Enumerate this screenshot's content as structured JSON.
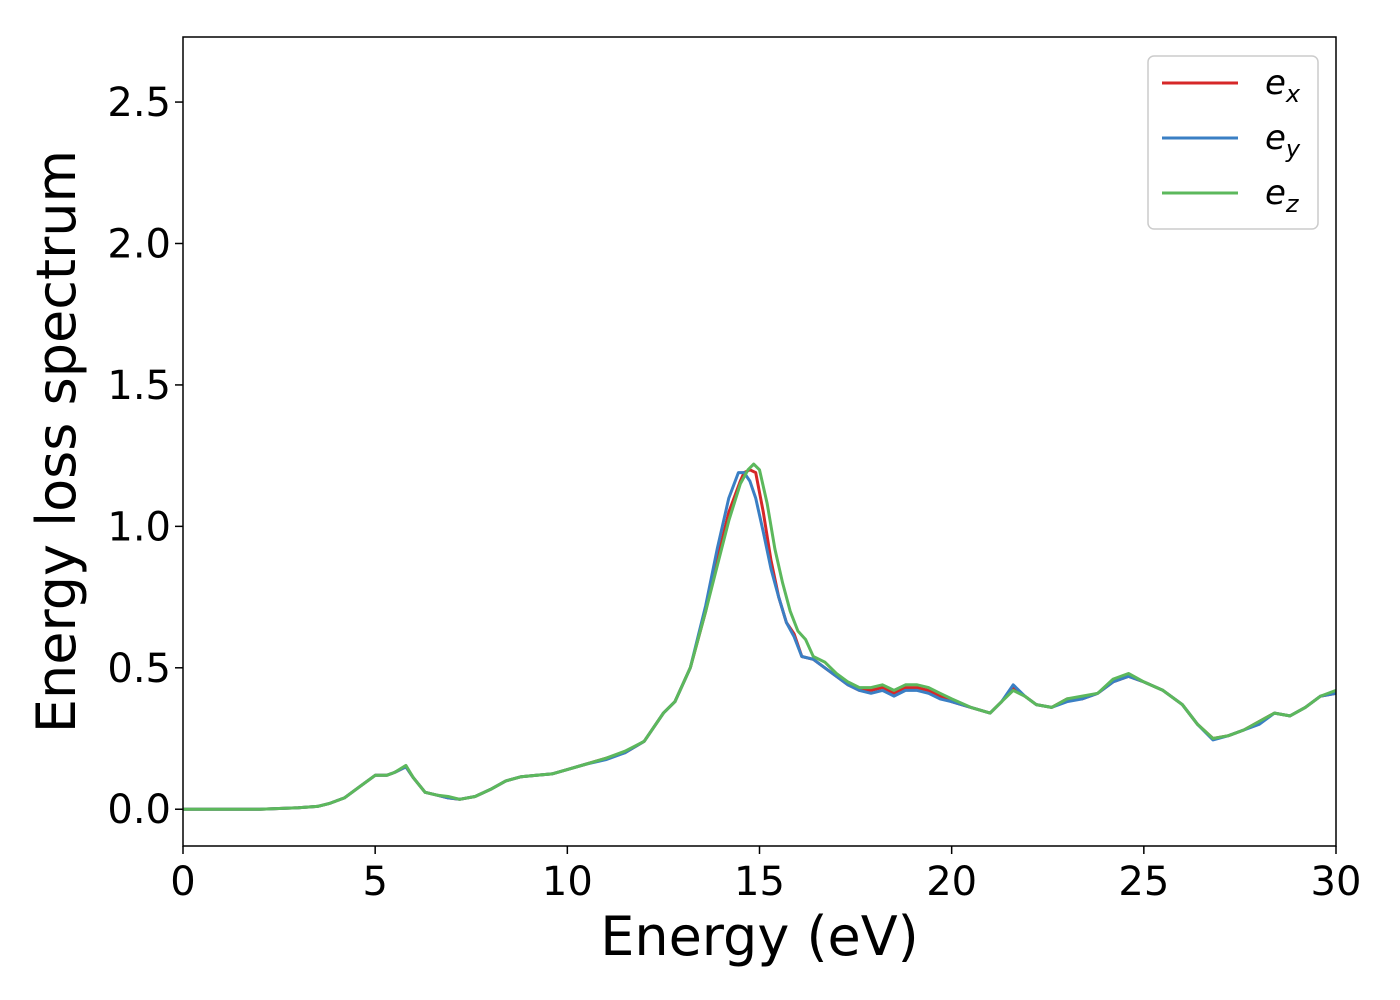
{
  "chart_data": {
    "type": "line",
    "xlabel": "Energy (eV)",
    "ylabel": "Energy loss spectrum",
    "xlim": [
      0,
      30
    ],
    "ylim": [
      -0.13,
      2.73
    ],
    "xticks": [
      0,
      5,
      10,
      15,
      20,
      25,
      30
    ],
    "xtick_labels": [
      "0",
      "5",
      "10",
      "15",
      "20",
      "25",
      "30"
    ],
    "yticks": [
      0.0,
      0.5,
      1.0,
      1.5,
      2.0,
      2.5
    ],
    "ytick_labels": [
      "0.0",
      "0.5",
      "1.0",
      "1.5",
      "2.0",
      "2.5"
    ],
    "grid": false,
    "legend_position": "top-right",
    "series": [
      {
        "name": "e_x",
        "legend_base": "e",
        "legend_sub": "x",
        "color": "#d62728",
        "x": [
          0,
          1,
          2,
          3,
          3.5,
          3.8,
          4.2,
          4.6,
          5.0,
          5.3,
          5.5,
          5.8,
          6.0,
          6.3,
          6.6,
          6.9,
          7.2,
          7.6,
          8.0,
          8.4,
          8.8,
          9.2,
          9.6,
          10.0,
          10.5,
          11.0,
          11.5,
          12.0,
          12.5,
          12.8,
          13.2,
          13.6,
          13.9,
          14.2,
          14.5,
          14.6,
          14.75,
          14.9,
          15.1,
          15.3,
          15.5,
          15.7,
          15.9,
          16.1,
          16.4,
          16.7,
          17.0,
          17.3,
          17.6,
          17.9,
          18.2,
          18.5,
          18.8,
          19.1,
          19.4,
          19.7,
          20.0,
          20.5,
          21.0,
          21.3,
          21.6,
          21.9,
          22.2,
          22.6,
          23.0,
          23.4,
          23.8,
          24.2,
          24.6,
          25.0,
          25.5,
          26.0,
          26.4,
          26.8,
          27.2,
          27.6,
          28.0,
          28.4,
          28.8,
          29.2,
          29.6,
          30.0
        ],
        "y": [
          0.0,
          0.0,
          0.0,
          0.005,
          0.01,
          0.02,
          0.04,
          0.08,
          0.12,
          0.12,
          0.13,
          0.15,
          0.11,
          0.06,
          0.05,
          0.04,
          0.035,
          0.045,
          0.07,
          0.1,
          0.115,
          0.12,
          0.125,
          0.14,
          0.16,
          0.18,
          0.2,
          0.24,
          0.34,
          0.38,
          0.5,
          0.7,
          0.88,
          1.05,
          1.16,
          1.19,
          1.2,
          1.19,
          1.05,
          0.88,
          0.75,
          0.66,
          0.62,
          0.54,
          0.53,
          0.5,
          0.47,
          0.44,
          0.42,
          0.42,
          0.43,
          0.41,
          0.43,
          0.43,
          0.42,
          0.4,
          0.38,
          0.36,
          0.34,
          0.38,
          0.43,
          0.4,
          0.37,
          0.36,
          0.39,
          0.39,
          0.41,
          0.45,
          0.47,
          0.45,
          0.42,
          0.37,
          0.3,
          0.25,
          0.26,
          0.28,
          0.31,
          0.34,
          0.33,
          0.36,
          0.4,
          0.41
        ]
      },
      {
        "name": "e_y",
        "legend_base": "e",
        "legend_sub": "y",
        "color": "#3a7fc4",
        "x": [
          0,
          1,
          2,
          3,
          3.5,
          3.8,
          4.2,
          4.6,
          5.0,
          5.3,
          5.5,
          5.8,
          6.0,
          6.3,
          6.6,
          6.9,
          7.2,
          7.6,
          8.0,
          8.4,
          8.8,
          9.2,
          9.6,
          10.0,
          10.5,
          11.0,
          11.5,
          12.0,
          12.5,
          12.8,
          13.2,
          13.6,
          13.9,
          14.2,
          14.45,
          14.6,
          14.75,
          14.9,
          15.1,
          15.3,
          15.5,
          15.7,
          15.9,
          16.1,
          16.4,
          16.7,
          17.0,
          17.3,
          17.6,
          17.9,
          18.2,
          18.5,
          18.8,
          19.1,
          19.4,
          19.7,
          20.0,
          20.5,
          21.0,
          21.3,
          21.6,
          21.9,
          22.2,
          22.6,
          23.0,
          23.4,
          23.8,
          24.2,
          24.6,
          25.0,
          25.5,
          26.0,
          26.4,
          26.8,
          27.2,
          27.6,
          28.0,
          28.4,
          28.8,
          29.2,
          29.6,
          30.0
        ],
        "y": [
          0.0,
          0.0,
          0.0,
          0.005,
          0.01,
          0.02,
          0.04,
          0.08,
          0.12,
          0.12,
          0.13,
          0.15,
          0.11,
          0.06,
          0.05,
          0.04,
          0.035,
          0.045,
          0.07,
          0.1,
          0.115,
          0.12,
          0.125,
          0.14,
          0.16,
          0.175,
          0.2,
          0.24,
          0.34,
          0.38,
          0.5,
          0.72,
          0.92,
          1.1,
          1.19,
          1.19,
          1.16,
          1.1,
          0.98,
          0.85,
          0.75,
          0.66,
          0.61,
          0.54,
          0.53,
          0.5,
          0.47,
          0.44,
          0.42,
          0.41,
          0.42,
          0.4,
          0.42,
          0.42,
          0.41,
          0.39,
          0.38,
          0.36,
          0.34,
          0.38,
          0.44,
          0.4,
          0.37,
          0.36,
          0.38,
          0.39,
          0.41,
          0.45,
          0.47,
          0.45,
          0.42,
          0.37,
          0.3,
          0.245,
          0.26,
          0.28,
          0.3,
          0.34,
          0.33,
          0.36,
          0.4,
          0.41
        ]
      },
      {
        "name": "e_z",
        "legend_base": "e",
        "legend_sub": "z",
        "color": "#5cb85c",
        "x": [
          0,
          1,
          2,
          3,
          3.5,
          3.8,
          4.2,
          4.6,
          5.0,
          5.3,
          5.5,
          5.8,
          6.0,
          6.3,
          6.6,
          6.9,
          7.2,
          7.6,
          8.0,
          8.4,
          8.8,
          9.2,
          9.6,
          10.0,
          10.5,
          11.0,
          11.5,
          12.0,
          12.5,
          12.8,
          13.2,
          13.6,
          13.9,
          14.2,
          14.5,
          14.7,
          14.85,
          15.0,
          15.2,
          15.4,
          15.6,
          15.8,
          16.0,
          16.2,
          16.4,
          16.7,
          17.0,
          17.3,
          17.6,
          17.9,
          18.2,
          18.5,
          18.8,
          19.1,
          19.4,
          19.7,
          20.0,
          20.5,
          21.0,
          21.3,
          21.6,
          21.9,
          22.2,
          22.6,
          23.0,
          23.4,
          23.8,
          24.2,
          24.6,
          25.0,
          25.5,
          26.0,
          26.4,
          26.8,
          27.2,
          27.6,
          28.0,
          28.4,
          28.8,
          29.2,
          29.6,
          30.0
        ],
        "y": [
          0.0,
          0.0,
          0.0,
          0.005,
          0.01,
          0.02,
          0.04,
          0.08,
          0.12,
          0.12,
          0.13,
          0.155,
          0.11,
          0.06,
          0.05,
          0.045,
          0.035,
          0.045,
          0.07,
          0.1,
          0.115,
          0.12,
          0.125,
          0.14,
          0.16,
          0.18,
          0.205,
          0.24,
          0.34,
          0.38,
          0.5,
          0.7,
          0.86,
          1.02,
          1.15,
          1.2,
          1.22,
          1.2,
          1.08,
          0.92,
          0.8,
          0.7,
          0.63,
          0.6,
          0.54,
          0.52,
          0.48,
          0.45,
          0.43,
          0.43,
          0.44,
          0.42,
          0.44,
          0.44,
          0.43,
          0.41,
          0.39,
          0.36,
          0.34,
          0.38,
          0.42,
          0.4,
          0.37,
          0.36,
          0.39,
          0.4,
          0.41,
          0.46,
          0.48,
          0.45,
          0.42,
          0.37,
          0.3,
          0.25,
          0.26,
          0.28,
          0.31,
          0.34,
          0.33,
          0.36,
          0.4,
          0.42
        ]
      }
    ]
  }
}
